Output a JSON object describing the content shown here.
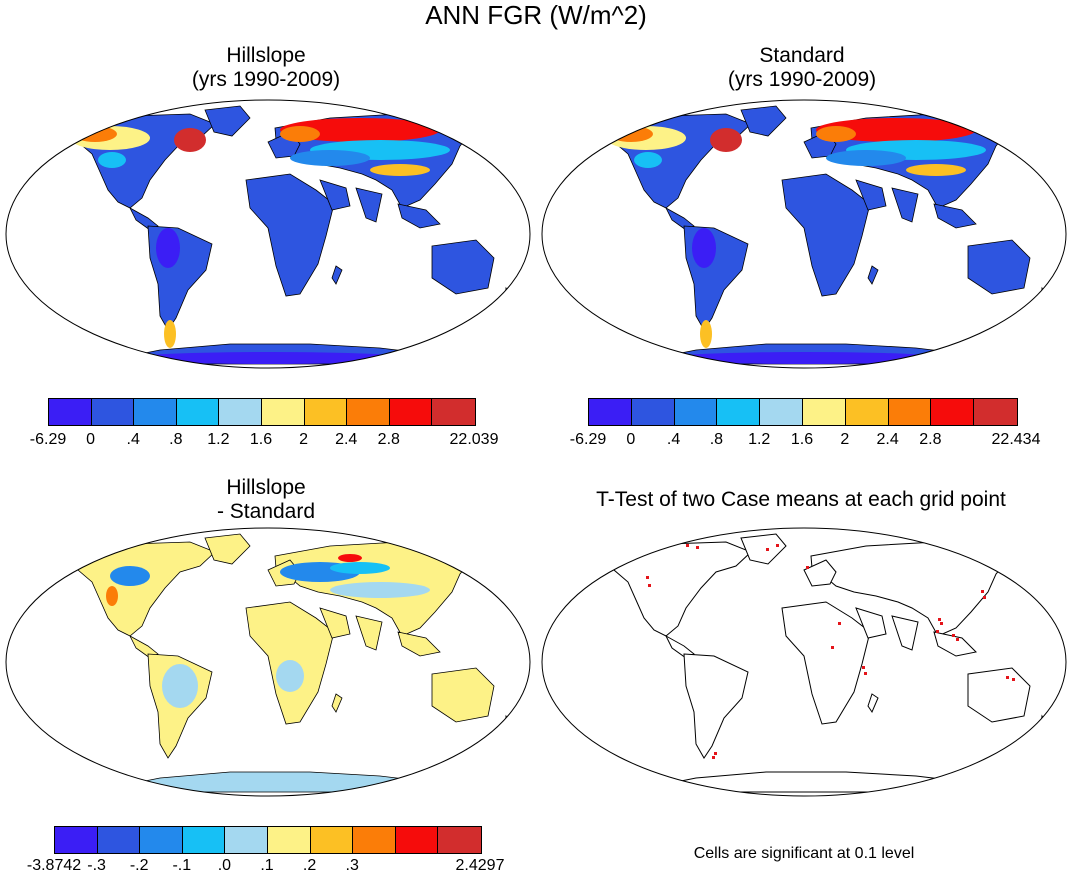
{
  "title": "ANN FGR (W/m^2)",
  "panels": {
    "hillslope": {
      "title_line1": "Hillslope",
      "title_line2": "(yrs 1990-2009)"
    },
    "standard": {
      "title_line1": "Standard",
      "title_line2": "(yrs 1990-2009)"
    },
    "difference": {
      "title_line1": "Hillslope",
      "title_line2": "- Standard"
    },
    "ttest": {
      "title": "T-Test of two Case means at each grid point",
      "note": "Cells are significant at 0.1 level"
    }
  },
  "colorbars": {
    "hillslope": {
      "colors": [
        "#3b1ef5",
        "#2e55e0",
        "#2389ec",
        "#17c0f5",
        "#a4d8f0",
        "#fdf287",
        "#fcc024",
        "#fb7d08",
        "#f60c0b",
        "#d22d2d"
      ],
      "labels": [
        "-6.29",
        "0",
        ".4",
        ".8",
        "1.2",
        "1.6",
        "2",
        "2.4",
        "2.8",
        "22.039"
      ]
    },
    "standard": {
      "colors": [
        "#3b1ef5",
        "#2e55e0",
        "#2389ec",
        "#17c0f5",
        "#a4d8f0",
        "#fdf287",
        "#fcc024",
        "#fb7d08",
        "#f60c0b",
        "#d22d2d"
      ],
      "labels": [
        "-6.29",
        "0",
        ".4",
        ".8",
        "1.2",
        "1.6",
        "2",
        "2.4",
        "2.8",
        "22.434"
      ]
    },
    "difference": {
      "colors": [
        "#3b1ef5",
        "#2e55e0",
        "#2389ec",
        "#17c0f5",
        "#a4d8f0",
        "#fdf287",
        "#fcc024",
        "#fb7d08",
        "#f60c0b",
        "#d22d2d"
      ],
      "labels": [
        "-3.8742",
        "-.3",
        "-.2",
        "-.1",
        ".0",
        ".1",
        ".2",
        ".3",
        "2.4297"
      ]
    }
  },
  "land_fill": {
    "hillslope": "#2e55e0",
    "standard": "#2e55e0",
    "difference": "#fdf287",
    "ttest": "#ffffff"
  }
}
